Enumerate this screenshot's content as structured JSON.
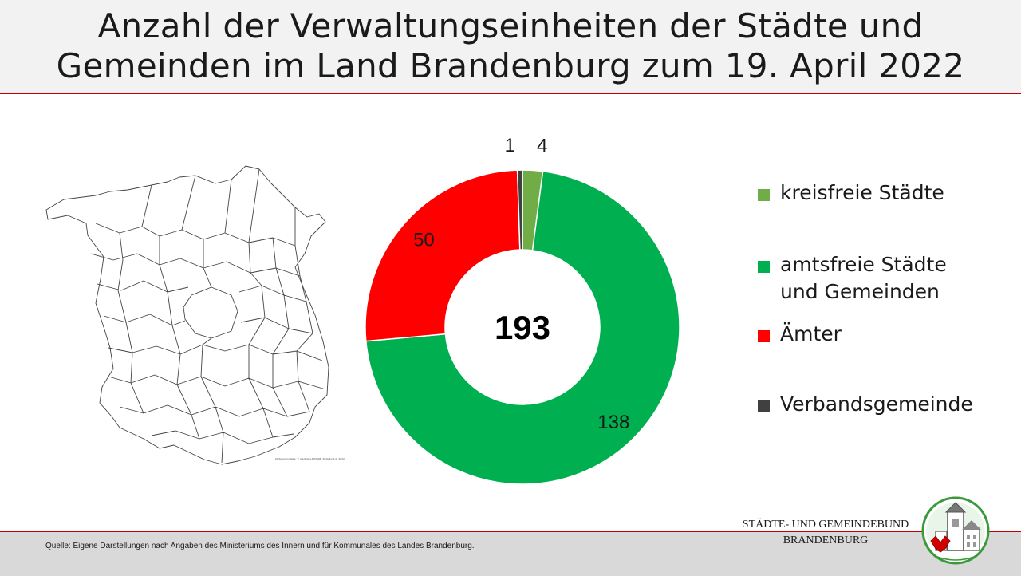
{
  "header": {
    "title_line1": "Anzahl der Verwaltungseinheiten der Städte und",
    "title_line2": "Gemeinden im Land Brandenburg zum 19. April 2022"
  },
  "map": {
    "caption": "Kartengrundlage: © GeoBasis-DE/LGB, dl-de/by-2-0, 2022"
  },
  "chart_data": {
    "type": "donut",
    "title": "",
    "categories": [
      "kreisfreie Städte",
      "amtsfreie Städte\nund Gemeinden",
      "Ämter",
      "Verbandsgemeinde"
    ],
    "values": [
      4,
      138,
      50,
      1
    ],
    "value_labels": [
      "4",
      "138",
      "50",
      "1"
    ],
    "colors": [
      "#70ad47",
      "#00b050",
      "#ff0000",
      "#404040"
    ],
    "center_label": "193",
    "legend_position": "right"
  },
  "footer": {
    "source": "Quelle:  Eigene Darstellungen nach Angaben des Ministeriums des Innern und für Kommunales des Landes Brandenburg.",
    "org_line1": "STÄDTE-  UND GEMEINDEBUND",
    "org_line2": "BRANDENBURG"
  }
}
